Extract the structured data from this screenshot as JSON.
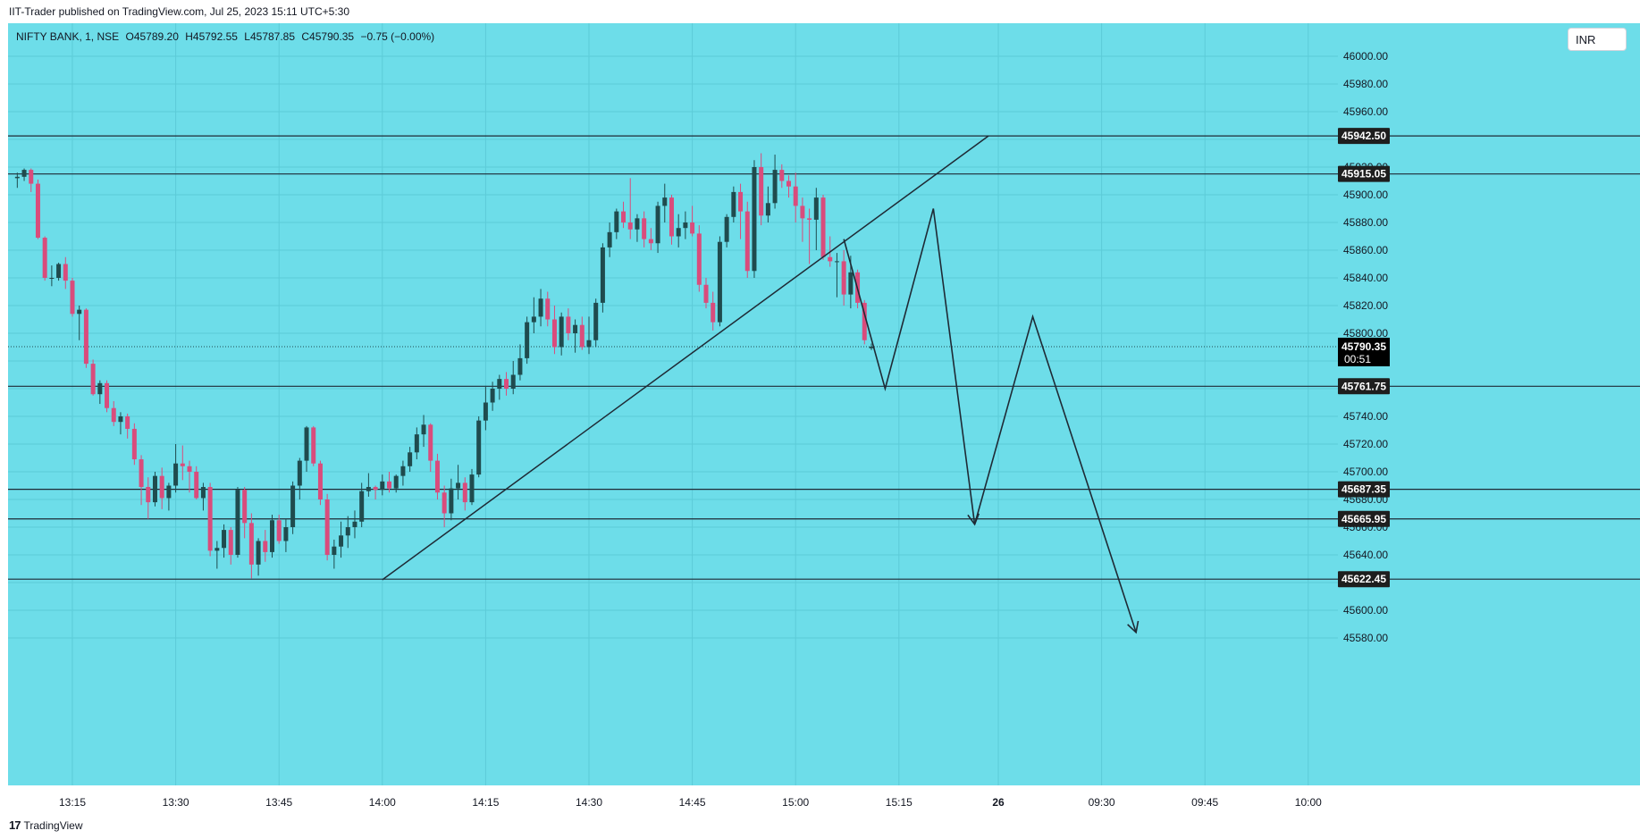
{
  "header": {
    "published_text": "IIT-Trader published on TradingView.com, Jul 25, 2023 15:11 UTC+5:30"
  },
  "legend": {
    "symbol": "NIFTY BANK, 1, NSE",
    "open": "O45789.20",
    "high": "H45792.55",
    "low": "L45787.85",
    "close": "C45790.35",
    "change": "−0.75 (−0.00%)"
  },
  "currency": "INR",
  "footer": {
    "brand": "TradingView",
    "logo_glyph": "17"
  },
  "colors": {
    "background": "#6ddde9",
    "bull": "#1f4b4e",
    "bear": "#d94c7c",
    "line": "#1e2a35",
    "label_bg": "#1e1e1e"
  },
  "chart_data": {
    "type": "candlestick",
    "symbol": "NIFTY BANK",
    "interval": "1",
    "exchange": "NSE",
    "y_axis": {
      "ticks": [
        46000,
        45980,
        45960,
        45940,
        45920,
        45900,
        45880,
        45860,
        45840,
        45820,
        45800,
        45780,
        45760,
        45740,
        45720,
        45700,
        45680,
        45660,
        45640,
        45620,
        45600,
        45580
      ],
      "tick_labels": [
        "46000.00",
        "45980.00",
        "45960.00",
        "45940.00",
        "45920.00",
        "45900.00",
        "45880.00",
        "45860.00",
        "45840.00",
        "45820.00",
        "45800.00",
        "45780.00",
        "45760.00",
        "45740.00",
        "45720.00",
        "45700.00",
        "45680.00",
        "45660.00",
        "45640.00",
        "45620.00",
        "45600.00",
        "45580.00"
      ],
      "range": [
        45568,
        46026
      ]
    },
    "x_axis": {
      "ticks": [
        "13:15",
        "13:30",
        "13:45",
        "14:00",
        "14:15",
        "14:30",
        "14:45",
        "15:00",
        "15:15",
        "26",
        "09:30",
        "09:45",
        "10:00"
      ]
    },
    "horizontal_levels": [
      {
        "value": 45942.5,
        "label": "45942.50"
      },
      {
        "value": 45915.05,
        "label": "45915.05"
      },
      {
        "value": 45761.75,
        "label": "45761.75"
      },
      {
        "value": 45687.35,
        "label": "45687.35"
      },
      {
        "value": 45665.95,
        "label": "45665.95"
      },
      {
        "value": 45622.45,
        "label": "45622.45"
      }
    ],
    "last_price": {
      "value": 45790.35,
      "label": "45790.35",
      "countdown": "00:51"
    },
    "candles": [
      {
        "t": "13:07",
        "o": 45912,
        "h": 45916,
        "l": 45905,
        "c": 45913
      },
      {
        "t": "13:08",
        "o": 45913,
        "h": 45919,
        "l": 45910,
        "c": 45918
      },
      {
        "t": "13:09",
        "o": 45918,
        "h": 45919,
        "l": 45902,
        "c": 45908
      },
      {
        "t": "13:10",
        "o": 45908,
        "h": 45911,
        "l": 45868,
        "c": 45869
      },
      {
        "t": "13:11",
        "o": 45869,
        "h": 45870,
        "l": 45838,
        "c": 45840
      },
      {
        "t": "13:12",
        "o": 45840,
        "h": 45849,
        "l": 45834,
        "c": 45840
      },
      {
        "t": "13:13",
        "o": 45840,
        "h": 45851,
        "l": 45838,
        "c": 45850
      },
      {
        "t": "13:14",
        "o": 45850,
        "h": 45855,
        "l": 45832,
        "c": 45838
      },
      {
        "t": "13:15",
        "o": 45838,
        "h": 45840,
        "l": 45812,
        "c": 45814
      },
      {
        "t": "13:16",
        "o": 45814,
        "h": 45820,
        "l": 45795,
        "c": 45817
      },
      {
        "t": "13:17",
        "o": 45817,
        "h": 45818,
        "l": 45775,
        "c": 45778
      },
      {
        "t": "13:18",
        "o": 45778,
        "h": 45781,
        "l": 45755,
        "c": 45756
      },
      {
        "t": "13:19",
        "o": 45756,
        "h": 45766,
        "l": 45749,
        "c": 45764
      },
      {
        "t": "13:20",
        "o": 45764,
        "h": 45766,
        "l": 45743,
        "c": 45746
      },
      {
        "t": "13:21",
        "o": 45746,
        "h": 45751,
        "l": 45733,
        "c": 45736
      },
      {
        "t": "13:22",
        "o": 45736,
        "h": 45743,
        "l": 45727,
        "c": 45740
      },
      {
        "t": "13:23",
        "o": 45740,
        "h": 45742,
        "l": 45724,
        "c": 45731
      },
      {
        "t": "13:24",
        "o": 45731,
        "h": 45735,
        "l": 45705,
        "c": 45709
      },
      {
        "t": "13:25",
        "o": 45709,
        "h": 45712,
        "l": 45676,
        "c": 45689
      },
      {
        "t": "13:26",
        "o": 45689,
        "h": 45696,
        "l": 45666,
        "c": 45678
      },
      {
        "t": "13:27",
        "o": 45678,
        "h": 45700,
        "l": 45675,
        "c": 45697
      },
      {
        "t": "13:28",
        "o": 45697,
        "h": 45703,
        "l": 45673,
        "c": 45681
      },
      {
        "t": "13:29",
        "o": 45681,
        "h": 45692,
        "l": 45672,
        "c": 45690
      },
      {
        "t": "13:30",
        "o": 45690,
        "h": 45720,
        "l": 45685,
        "c": 45706
      },
      {
        "t": "13:31",
        "o": 45706,
        "h": 45719,
        "l": 45694,
        "c": 45704
      },
      {
        "t": "13:32",
        "o": 45704,
        "h": 45708,
        "l": 45685,
        "c": 45700
      },
      {
        "t": "13:33",
        "o": 45700,
        "h": 45704,
        "l": 45680,
        "c": 45681
      },
      {
        "t": "13:34",
        "o": 45681,
        "h": 45692,
        "l": 45672,
        "c": 45689
      },
      {
        "t": "13:35",
        "o": 45689,
        "h": 45692,
        "l": 45639,
        "c": 45643
      },
      {
        "t": "13:36",
        "o": 45643,
        "h": 45650,
        "l": 45630,
        "c": 45645
      },
      {
        "t": "13:37",
        "o": 45645,
        "h": 45662,
        "l": 45638,
        "c": 45658
      },
      {
        "t": "13:38",
        "o": 45658,
        "h": 45660,
        "l": 45633,
        "c": 45640
      },
      {
        "t": "13:39",
        "o": 45640,
        "h": 45689,
        "l": 45638,
        "c": 45687
      },
      {
        "t": "13:40",
        "o": 45687,
        "h": 45689,
        "l": 45652,
        "c": 45663
      },
      {
        "t": "13:41",
        "o": 45663,
        "h": 45670,
        "l": 45623,
        "c": 45633
      },
      {
        "t": "13:42",
        "o": 45633,
        "h": 45652,
        "l": 45625,
        "c": 45650
      },
      {
        "t": "13:43",
        "o": 45650,
        "h": 45658,
        "l": 45635,
        "c": 45642
      },
      {
        "t": "13:44",
        "o": 45642,
        "h": 45669,
        "l": 45638,
        "c": 45665
      },
      {
        "t": "13:45",
        "o": 45665,
        "h": 45669,
        "l": 45648,
        "c": 45650
      },
      {
        "t": "13:46",
        "o": 45650,
        "h": 45666,
        "l": 45642,
        "c": 45660
      },
      {
        "t": "13:47",
        "o": 45660,
        "h": 45693,
        "l": 45655,
        "c": 45690
      },
      {
        "t": "13:48",
        "o": 45690,
        "h": 45710,
        "l": 45680,
        "c": 45708
      },
      {
        "t": "13:49",
        "o": 45708,
        "h": 45733,
        "l": 45700,
        "c": 45732
      },
      {
        "t": "13:50",
        "o": 45732,
        "h": 45733,
        "l": 45704,
        "c": 45706
      },
      {
        "t": "13:51",
        "o": 45706,
        "h": 45708,
        "l": 45676,
        "c": 45680
      },
      {
        "t": "13:52",
        "o": 45680,
        "h": 45684,
        "l": 45636,
        "c": 45640
      },
      {
        "t": "13:53",
        "o": 45640,
        "h": 45651,
        "l": 45630,
        "c": 45646
      },
      {
        "t": "13:54",
        "o": 45646,
        "h": 45664,
        "l": 45638,
        "c": 45654
      },
      {
        "t": "13:55",
        "o": 45654,
        "h": 45668,
        "l": 45645,
        "c": 45660
      },
      {
        "t": "13:56",
        "o": 45660,
        "h": 45672,
        "l": 45652,
        "c": 45664
      },
      {
        "t": "13:57",
        "o": 45664,
        "h": 45692,
        "l": 45660,
        "c": 45686
      },
      {
        "t": "13:58",
        "o": 45686,
        "h": 45699,
        "l": 45682,
        "c": 45689
      },
      {
        "t": "13:59",
        "o": 45689,
        "h": 45690,
        "l": 45680,
        "c": 45687
      },
      {
        "t": "14:00",
        "o": 45687,
        "h": 45698,
        "l": 45683,
        "c": 45693
      },
      {
        "t": "14:01",
        "o": 45693,
        "h": 45700,
        "l": 45685,
        "c": 45688
      },
      {
        "t": "14:02",
        "o": 45688,
        "h": 45698,
        "l": 45685,
        "c": 45697
      },
      {
        "t": "14:03",
        "o": 45697,
        "h": 45708,
        "l": 45690,
        "c": 45704
      },
      {
        "t": "14:04",
        "o": 45704,
        "h": 45718,
        "l": 45700,
        "c": 45714
      },
      {
        "t": "14:05",
        "o": 45714,
        "h": 45732,
        "l": 45709,
        "c": 45727
      },
      {
        "t": "14:06",
        "o": 45727,
        "h": 45741,
        "l": 45718,
        "c": 45734
      },
      {
        "t": "14:07",
        "o": 45734,
        "h": 45735,
        "l": 45700,
        "c": 45708
      },
      {
        "t": "14:08",
        "o": 45708,
        "h": 45713,
        "l": 45680,
        "c": 45685
      },
      {
        "t": "14:09",
        "o": 45685,
        "h": 45690,
        "l": 45660,
        "c": 45670
      },
      {
        "t": "14:10",
        "o": 45670,
        "h": 45695,
        "l": 45665,
        "c": 45688
      },
      {
        "t": "14:11",
        "o": 45688,
        "h": 45705,
        "l": 45680,
        "c": 45692
      },
      {
        "t": "14:12",
        "o": 45692,
        "h": 45696,
        "l": 45672,
        "c": 45678
      },
      {
        "t": "14:13",
        "o": 45678,
        "h": 45702,
        "l": 45676,
        "c": 45698
      },
      {
        "t": "14:14",
        "o": 45698,
        "h": 45740,
        "l": 45696,
        "c": 45737
      },
      {
        "t": "14:15",
        "o": 45737,
        "h": 45762,
        "l": 45730,
        "c": 45750
      },
      {
        "t": "14:16",
        "o": 45750,
        "h": 45765,
        "l": 45744,
        "c": 45760
      },
      {
        "t": "14:17",
        "o": 45760,
        "h": 45770,
        "l": 45752,
        "c": 45767
      },
      {
        "t": "14:18",
        "o": 45767,
        "h": 45772,
        "l": 45755,
        "c": 45760
      },
      {
        "t": "14:19",
        "o": 45760,
        "h": 45780,
        "l": 45756,
        "c": 45770
      },
      {
        "t": "14:20",
        "o": 45770,
        "h": 45792,
        "l": 45766,
        "c": 45782
      },
      {
        "t": "14:21",
        "o": 45782,
        "h": 45812,
        "l": 45778,
        "c": 45808
      },
      {
        "t": "14:22",
        "o": 45808,
        "h": 45826,
        "l": 45800,
        "c": 45812
      },
      {
        "t": "14:23",
        "o": 45812,
        "h": 45832,
        "l": 45805,
        "c": 45825
      },
      {
        "t": "14:24",
        "o": 45825,
        "h": 45830,
        "l": 45805,
        "c": 45810
      },
      {
        "t": "14:25",
        "o": 45810,
        "h": 45820,
        "l": 45785,
        "c": 45790
      },
      {
        "t": "14:26",
        "o": 45790,
        "h": 45815,
        "l": 45784,
        "c": 45812
      },
      {
        "t": "14:27",
        "o": 45812,
        "h": 45818,
        "l": 45795,
        "c": 45800
      },
      {
        "t": "14:28",
        "o": 45800,
        "h": 45810,
        "l": 45786,
        "c": 45806
      },
      {
        "t": "14:29",
        "o": 45806,
        "h": 45812,
        "l": 45788,
        "c": 45790
      },
      {
        "t": "14:30",
        "o": 45790,
        "h": 45812,
        "l": 45785,
        "c": 45795
      },
      {
        "t": "14:31",
        "o": 45795,
        "h": 45825,
        "l": 45790,
        "c": 45822
      },
      {
        "t": "14:32",
        "o": 45822,
        "h": 45865,
        "l": 45815,
        "c": 45862
      },
      {
        "t": "14:33",
        "o": 45862,
        "h": 45880,
        "l": 45855,
        "c": 45873
      },
      {
        "t": "14:34",
        "o": 45873,
        "h": 45890,
        "l": 45868,
        "c": 45888
      },
      {
        "t": "14:35",
        "o": 45888,
        "h": 45895,
        "l": 45876,
        "c": 45880
      },
      {
        "t": "14:36",
        "o": 45880,
        "h": 45912,
        "l": 45868,
        "c": 45875
      },
      {
        "t": "14:37",
        "o": 45875,
        "h": 45886,
        "l": 45866,
        "c": 45883
      },
      {
        "t": "14:38",
        "o": 45883,
        "h": 45888,
        "l": 45862,
        "c": 45868
      },
      {
        "t": "14:39",
        "o": 45868,
        "h": 45876,
        "l": 45860,
        "c": 45865
      },
      {
        "t": "14:40",
        "o": 45865,
        "h": 45895,
        "l": 45858,
        "c": 45892
      },
      {
        "t": "14:41",
        "o": 45892,
        "h": 45908,
        "l": 45880,
        "c": 45898
      },
      {
        "t": "14:42",
        "o": 45898,
        "h": 45900,
        "l": 45864,
        "c": 45870
      },
      {
        "t": "14:43",
        "o": 45870,
        "h": 45886,
        "l": 45862,
        "c": 45876
      },
      {
        "t": "14:44",
        "o": 45876,
        "h": 45888,
        "l": 45868,
        "c": 45880
      },
      {
        "t": "14:45",
        "o": 45880,
        "h": 45892,
        "l": 45870,
        "c": 45872
      },
      {
        "t": "14:46",
        "o": 45872,
        "h": 45878,
        "l": 45830,
        "c": 45835
      },
      {
        "t": "14:47",
        "o": 45835,
        "h": 45840,
        "l": 45818,
        "c": 45822
      },
      {
        "t": "14:48",
        "o": 45822,
        "h": 45830,
        "l": 45802,
        "c": 45808
      },
      {
        "t": "14:49",
        "o": 45808,
        "h": 45870,
        "l": 45805,
        "c": 45866
      },
      {
        "t": "14:50",
        "o": 45866,
        "h": 45886,
        "l": 45862,
        "c": 45884
      },
      {
        "t": "14:51",
        "o": 45884,
        "h": 45906,
        "l": 45880,
        "c": 45902
      },
      {
        "t": "14:52",
        "o": 45902,
        "h": 45908,
        "l": 45868,
        "c": 45888
      },
      {
        "t": "14:53",
        "o": 45888,
        "h": 45895,
        "l": 45840,
        "c": 45845
      },
      {
        "t": "14:54",
        "o": 45845,
        "h": 45925,
        "l": 45840,
        "c": 45920
      },
      {
        "t": "14:55",
        "o": 45920,
        "h": 45930,
        "l": 45878,
        "c": 45885
      },
      {
        "t": "14:56",
        "o": 45885,
        "h": 45906,
        "l": 45880,
        "c": 45894
      },
      {
        "t": "14:57",
        "o": 45894,
        "h": 45929,
        "l": 45890,
        "c": 45918
      },
      {
        "t": "14:58",
        "o": 45918,
        "h": 45922,
        "l": 45905,
        "c": 45910
      },
      {
        "t": "14:59",
        "o": 45910,
        "h": 45914,
        "l": 45898,
        "c": 45906
      },
      {
        "t": "15:00",
        "o": 45906,
        "h": 45916,
        "l": 45880,
        "c": 45892
      },
      {
        "t": "15:01",
        "o": 45892,
        "h": 45898,
        "l": 45866,
        "c": 45883
      },
      {
        "t": "15:02",
        "o": 45883,
        "h": 45890,
        "l": 45850,
        "c": 45882
      },
      {
        "t": "15:03",
        "o": 45882,
        "h": 45905,
        "l": 45860,
        "c": 45898
      },
      {
        "t": "15:04",
        "o": 45898,
        "h": 45900,
        "l": 45853,
        "c": 45855
      },
      {
        "t": "15:05",
        "o": 45855,
        "h": 45870,
        "l": 45848,
        "c": 45852
      },
      {
        "t": "15:06",
        "o": 45852,
        "h": 45858,
        "l": 45826,
        "c": 45852
      },
      {
        "t": "15:07",
        "o": 45852,
        "h": 45860,
        "l": 45820,
        "c": 45828
      },
      {
        "t": "15:08",
        "o": 45828,
        "h": 45856,
        "l": 45818,
        "c": 45844
      },
      {
        "t": "15:09",
        "o": 45844,
        "h": 45846,
        "l": 45818,
        "c": 45822
      },
      {
        "t": "15:10",
        "o": 45822,
        "h": 45824,
        "l": 45792,
        "c": 45795
      },
      {
        "t": "15:11",
        "o": 45789.2,
        "h": 45792.55,
        "l": 45787.85,
        "c": 45790.35
      }
    ],
    "drawings": {
      "trendline": [
        {
          "t": "14:00",
          "v": 45622
        },
        {
          "t": "15:28",
          "v": 45942.5
        }
      ],
      "projection_path_1": [
        {
          "t": "15:07",
          "v": 45868
        },
        {
          "t": "15:13",
          "v": 45760
        },
        {
          "t": "15:20",
          "v": 45890
        },
        {
          "t": "15:26",
          "v": 45662
        }
      ],
      "projection_path_2": [
        {
          "t": "15:26",
          "v": 45662
        },
        {
          "t": "09:20",
          "v": 45812
        },
        {
          "t": "09:35",
          "v": 45584
        }
      ]
    }
  }
}
